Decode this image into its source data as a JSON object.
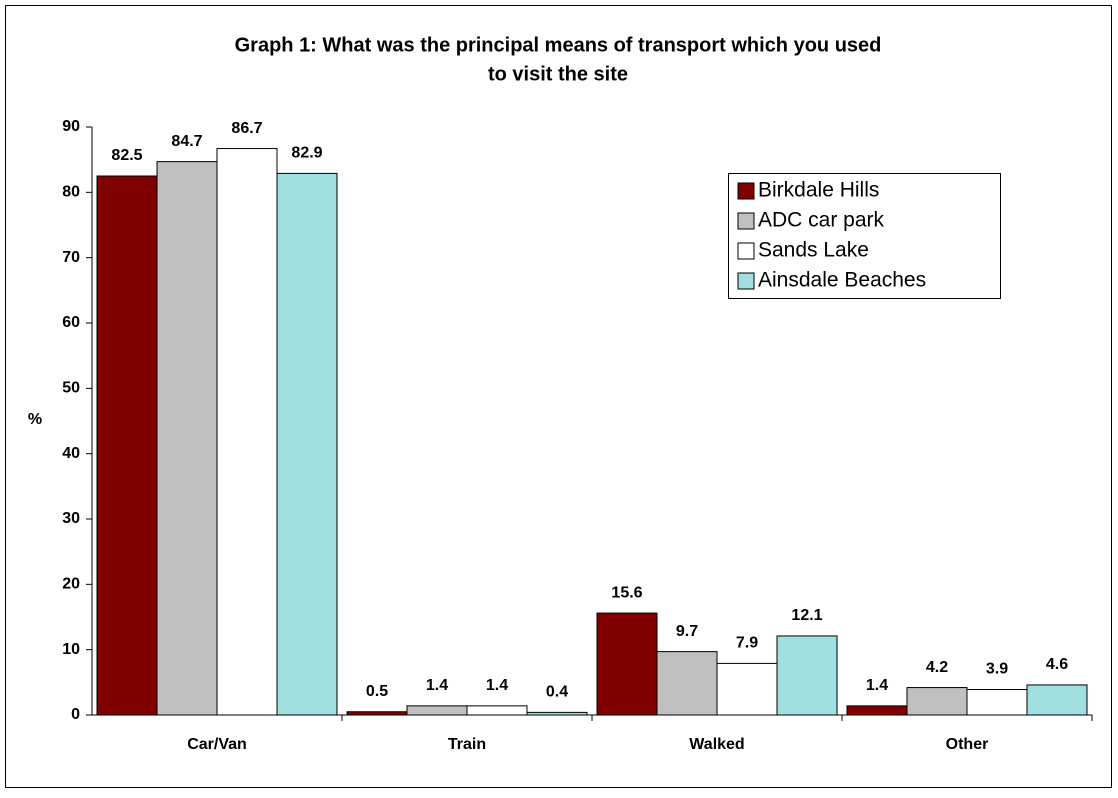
{
  "chart_data": {
    "type": "bar",
    "title": [
      "Graph 1: What was the principal means of transport which you used",
      "to visit the site"
    ],
    "ylabel": "%",
    "categories": [
      "Car/Van",
      "Train",
      "Walked",
      "Other"
    ],
    "series": [
      {
        "name": "Birkdale Hills",
        "color": "#800000",
        "values": [
          82.5,
          0.5,
          15.6,
          1.4
        ]
      },
      {
        "name": "ADC car park",
        "color": "#c0c0c0",
        "values": [
          84.7,
          1.4,
          9.7,
          4.2
        ]
      },
      {
        "name": "Sands Lake",
        "color": "#ffffff",
        "values": [
          86.7,
          1.4,
          7.9,
          3.9
        ]
      },
      {
        "name": "Ainsdale Beaches",
        "color": "#a0e0e0",
        "values": [
          82.9,
          0.4,
          12.1,
          4.6
        ]
      }
    ],
    "ylim": [
      0,
      90
    ],
    "yticks": [
      0,
      10,
      20,
      30,
      40,
      50,
      60,
      70,
      80,
      90
    ],
    "legend": "upper right"
  }
}
